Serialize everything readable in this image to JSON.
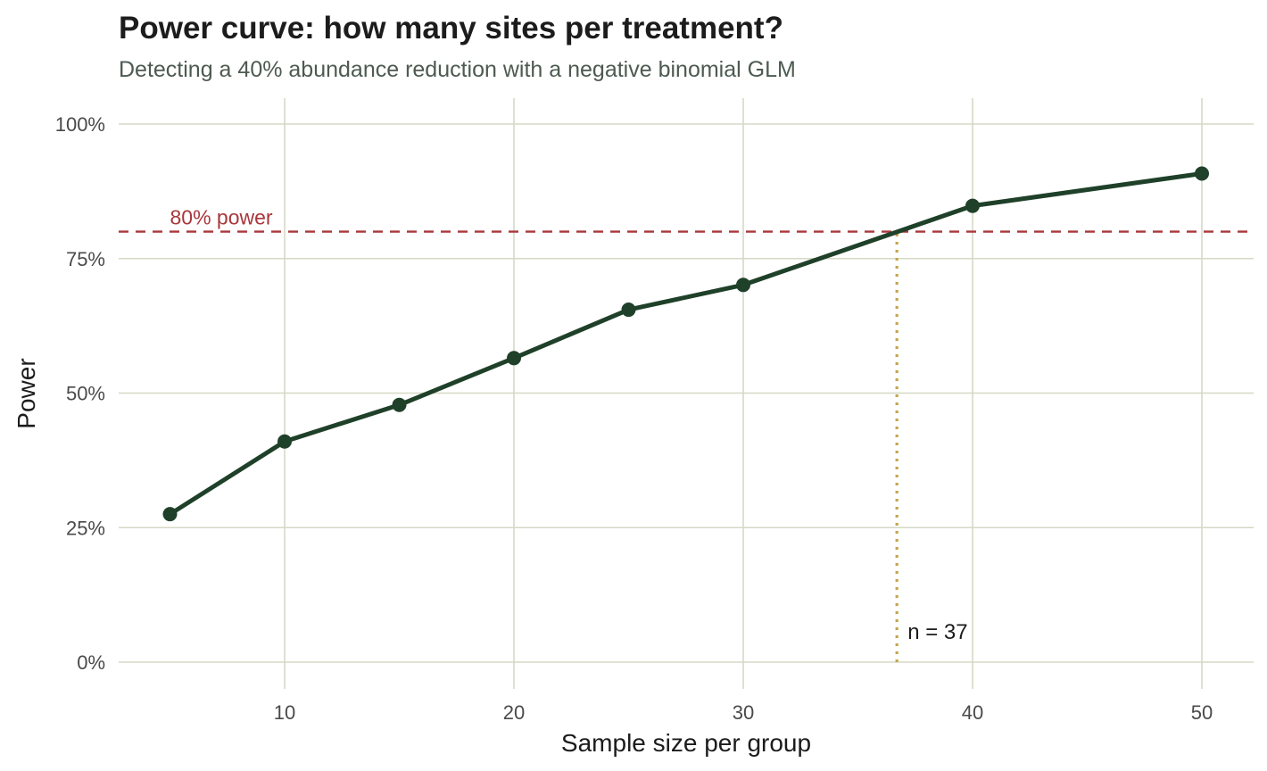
{
  "chart_data": {
    "type": "line",
    "title": "Power curve: how many sites per treatment?",
    "subtitle": "Detecting a 40% abundance reduction with a negative binomial GLM",
    "xlabel": "Sample size per group",
    "ylabel": "Power",
    "xlim": [
      2,
      52
    ],
    "ylim": [
      0,
      1
    ],
    "x_ticks": [
      10,
      20,
      30,
      40,
      50
    ],
    "x_tick_labels": [
      "10",
      "20",
      "30",
      "40",
      "50"
    ],
    "y_ticks": [
      0,
      0.25,
      0.5,
      0.75,
      1.0
    ],
    "y_tick_labels": [
      "0%",
      "25%",
      "50%",
      "75%",
      "100%"
    ],
    "grid": true,
    "series": [
      {
        "x": [
          5,
          10,
          15,
          20,
          25,
          30,
          40,
          50
        ],
        "values": [
          0.275,
          0.41,
          0.478,
          0.565,
          0.655,
          0.701,
          0.848,
          0.908
        ],
        "color": "#1f4029"
      }
    ],
    "reference_line": {
      "y": 0.8,
      "label": "80% power",
      "color": "#a8373b",
      "style": "dashed"
    },
    "marker_line": {
      "x": 36.7,
      "label": "n = 37",
      "color": "#c4a54f",
      "style": "dotted"
    },
    "colors": {
      "grid": "#d6d8c6",
      "tick_text": "#4a4a4a",
      "subtitle": "#4d5a50"
    }
  }
}
